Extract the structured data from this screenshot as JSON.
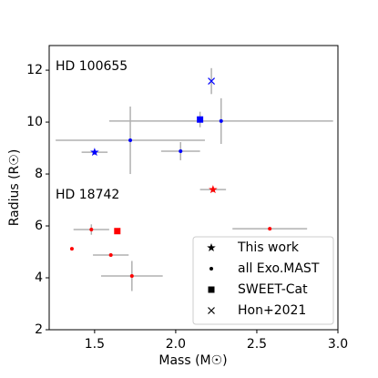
{
  "chart_data": {
    "type": "scatter",
    "xlabel": "Mass (M☉)",
    "ylabel": "Radius (R☉)",
    "xlim": [
      1.22,
      3.0
    ],
    "ylim": [
      2,
      12.95
    ],
    "xticks": [
      1.5,
      {
        "value": 2.0,
        "label": "2.0"
      },
      2.5,
      {
        "value": 3.0,
        "label": "3.0"
      }
    ],
    "yticks": [
      2,
      4,
      6,
      8,
      10,
      12
    ],
    "error_color": "#b0b0b0",
    "legend": "lower right",
    "annotations": [
      {
        "text": "HD 100655",
        "color": "#0000ff"
      },
      {
        "text": "HD 18742",
        "color": "#ff0000"
      }
    ],
    "series": [
      {
        "name": "This work",
        "marker": "star",
        "colors": [
          "#0000ff",
          "#ff0000"
        ],
        "x": [
          1.5,
          2.23
        ],
        "values": [
          8.84,
          7.4
        ],
        "xerr": [
          0.08,
          0.08
        ],
        "yerr": [
          0.1,
          0.1
        ]
      },
      {
        "name": "all Exo.MAST",
        "marker": "dot",
        "colors": [
          "#0000ff",
          "#0000ff",
          "#0000ff",
          "#ff0000",
          "#ff0000",
          "#ff0000",
          "#ff0000",
          "#ff0000"
        ],
        "x": [
          1.72,
          2.03,
          2.28,
          1.36,
          1.48,
          1.6,
          1.73,
          2.58
        ],
        "values": [
          9.3,
          8.88,
          10.04,
          5.12,
          5.86,
          4.88,
          4.07,
          5.89
        ],
        "xerr": [
          0.46,
          0.12,
          0.69,
          null,
          0.11,
          0.11,
          0.19,
          0.23
        ],
        "yerr": [
          1.3,
          0.35,
          0.88,
          null,
          0.2,
          null,
          0.58,
          null
        ]
      },
      {
        "name": "SWEET-Cat",
        "marker": "square",
        "colors": [
          "#0000ff",
          "#ff0000"
        ],
        "x": [
          2.15,
          1.64
        ],
        "values": [
          10.1,
          5.8
        ],
        "xerr": [
          null,
          null
        ],
        "yerr": [
          0.3,
          null
        ]
      },
      {
        "name": "Hon+2021",
        "marker": "x",
        "colors": [
          "#0000ff"
        ],
        "x": [
          2.22
        ],
        "values": [
          11.58
        ],
        "xerr": [
          null
        ],
        "yerr": [
          0.5
        ]
      }
    ]
  }
}
